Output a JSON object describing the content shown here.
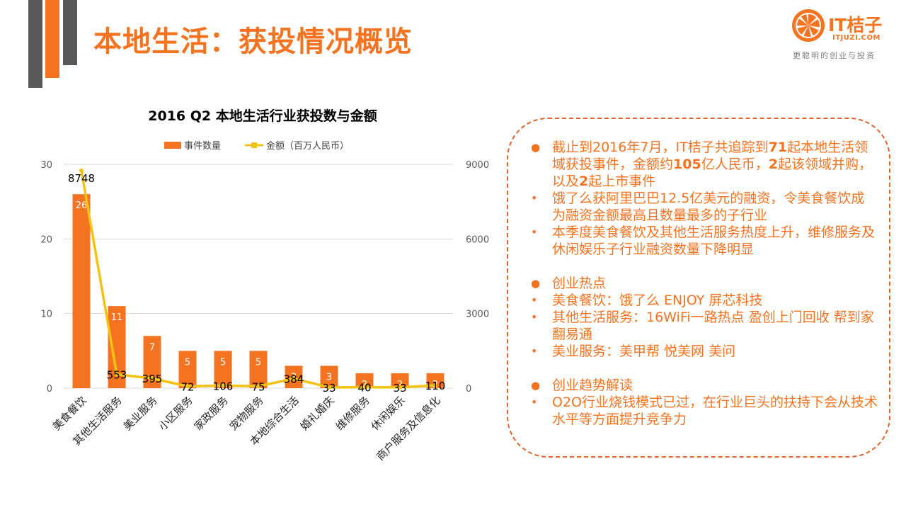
{
  "page": {
    "title": "本地生活：获投情况概览"
  },
  "logo": {
    "brand": "IT桔子",
    "domain": "ITJUZI.COM",
    "tagline": "更聪明的创业与投资"
  },
  "colors": {
    "accent": "#f47321",
    "bar": "#f47321",
    "line": "#f2c314",
    "dark_deco": "#595959",
    "axis_text": "#595959"
  },
  "chart_data": {
    "type": "bar",
    "title": "2016 Q2 本地生活行业获投数与金额",
    "categories": [
      "美食餐饮",
      "其他生活服务",
      "美业服务",
      "小区服务",
      "家政服务",
      "宠物服务",
      "本地综合生活",
      "婚礼婚庆",
      "维修服务",
      "休闲娱乐",
      "商户服务及信息化"
    ],
    "series": [
      {
        "name": "事件数量",
        "kind": "bar",
        "axis": "left",
        "values": [
          26,
          11,
          7,
          5,
          5,
          5,
          3,
          3,
          2,
          2,
          2
        ]
      },
      {
        "name": "金额（百万人民币）",
        "kind": "line",
        "axis": "right",
        "values": [
          8748,
          553,
          395,
          72,
          106,
          75,
          384,
          33,
          40,
          33,
          110
        ]
      }
    ],
    "y_left": {
      "min": 0,
      "max": 30,
      "ticks": [
        0,
        10,
        20,
        30
      ]
    },
    "y_right": {
      "min": 0,
      "max": 9000,
      "ticks": [
        0,
        3000,
        6000,
        9000
      ]
    },
    "legend_position": "top-center",
    "grid": true
  },
  "summary": {
    "sections": [
      {
        "heading": [
          "截止到2016年7月，IT桔子共追踪到",
          "71",
          "起本地生活领域获投事件，金额约",
          "105",
          "亿人民币，",
          "2",
          "起该领域并购，以及",
          "2",
          "起上市事件"
        ],
        "items": [
          "饿了么获阿里巴巴12.5亿美元的融资，令美食餐饮成为融资金额最高且数量最多的子行业",
          "本季度美食餐饮及其他生活服务热度上升，维修服务及休闲娱乐子行业融资数量下降明显"
        ]
      },
      {
        "heading": "创业热点",
        "items": [
          "美食餐饮：饿了么  ENJOY  屏芯科技",
          "其他生活服务：16WiFi一路热点  盈创上门回收  帮到家  翻易通",
          "美业服务：美甲帮  悦美网  美问"
        ]
      },
      {
        "heading": "创业趋势解读",
        "items": [
          "O2O行业烧钱模式已过，在行业巨头的扶持下会从技术水平等方面提升竞争力"
        ]
      }
    ]
  }
}
